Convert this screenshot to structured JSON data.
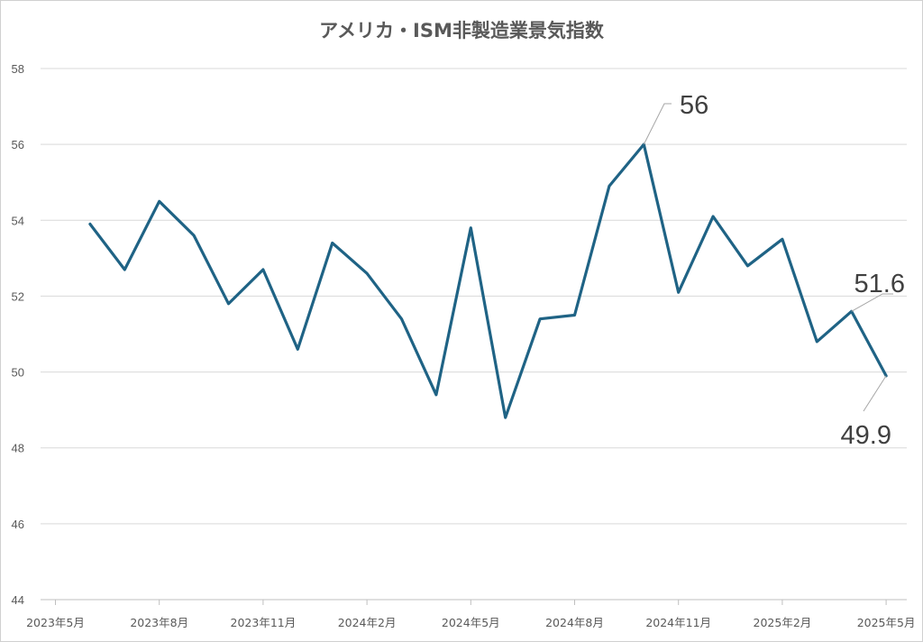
{
  "chart_data": {
    "type": "line",
    "title": "アメリカ・ISM非製造業景気指数",
    "xlabel": "",
    "ylabel": "",
    "ylim": [
      44,
      58
    ],
    "y_ticks": [
      "44",
      "46",
      "48",
      "50",
      "52",
      "54",
      "56",
      "58"
    ],
    "x_tick_labels": [
      "2023年5月",
      "2023年8月",
      "2023年11月",
      "2024年2月",
      "2024年5月",
      "2024年8月",
      "2024年11月",
      "2025年2月",
      "2025年5月"
    ],
    "grid": true,
    "legend": "none",
    "color": "#1f6385",
    "x": [
      "2023年6月",
      "2023年7月",
      "2023年8月",
      "2023年9月",
      "2023年10月",
      "2023年11月",
      "2023年12月",
      "2024年1月",
      "2024年2月",
      "2024年3月",
      "2024年4月",
      "2024年5月",
      "2024年6月",
      "2024年7月",
      "2024年8月",
      "2024年9月",
      "2024年10月",
      "2024年11月",
      "2024年12月",
      "2025年1月",
      "2025年2月",
      "2025年3月",
      "2025年4月",
      "2025年5月"
    ],
    "values": [
      53.9,
      52.7,
      54.5,
      53.6,
      51.8,
      52.7,
      50.6,
      53.4,
      52.6,
      51.4,
      49.4,
      53.8,
      48.8,
      51.4,
      51.5,
      54.9,
      56.0,
      52.1,
      54.1,
      52.8,
      53.5,
      50.8,
      51.6,
      49.9
    ],
    "annotations": [
      {
        "index": 16,
        "text": "56"
      },
      {
        "index": 22,
        "text": "51.6"
      },
      {
        "index": 23,
        "text": "49.9"
      }
    ]
  }
}
